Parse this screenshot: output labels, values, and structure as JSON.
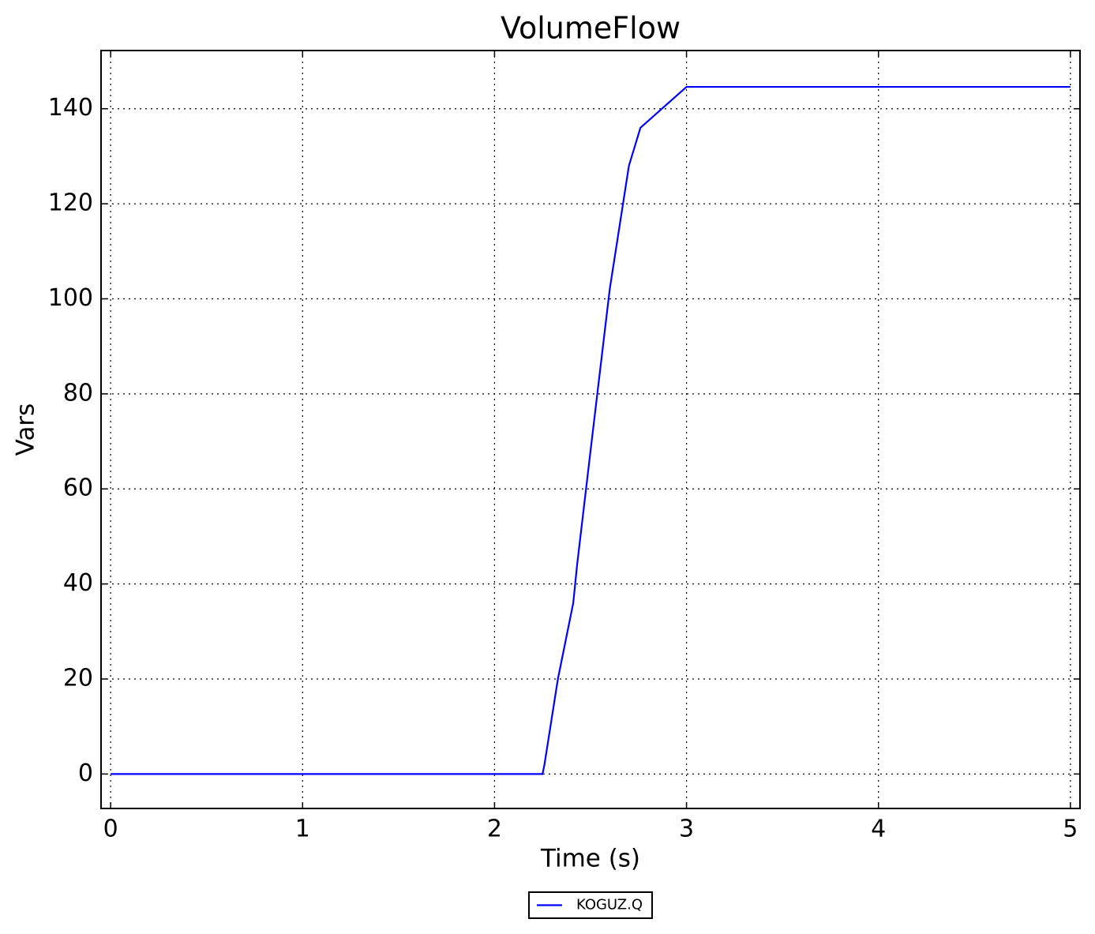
{
  "chart_data": {
    "type": "line",
    "title": "VolumeFlow",
    "x_label": "Time (s)",
    "y_label": "Vars",
    "x": [
      0,
      2.25,
      2.26,
      2.33,
      2.41,
      2.43,
      2.5,
      2.6,
      2.7,
      2.76,
      3.0,
      5.0
    ],
    "series": [
      {
        "name": "KOGUZ.Q",
        "color": "#0000ff",
        "values": [
          0,
          0,
          2,
          20,
          36,
          44,
          68,
          102,
          128,
          136,
          144.6,
          144.6
        ]
      }
    ],
    "xlim": [
      -0.05,
      5.05
    ],
    "xticks": [
      0,
      1,
      2,
      3,
      4,
      5
    ],
    "ylim": [
      -7.25,
      152.25
    ],
    "yticks": [
      0,
      20,
      40,
      60,
      80,
      100,
      120,
      140
    ],
    "grid": true,
    "legend": "bottom"
  }
}
